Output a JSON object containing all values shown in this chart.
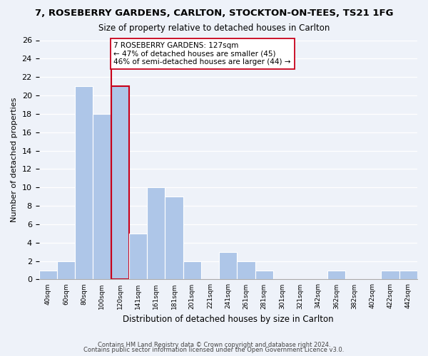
{
  "title": "7, ROSEBERRY GARDENS, CARLTON, STOCKTON-ON-TEES, TS21 1FG",
  "subtitle": "Size of property relative to detached houses in Carlton",
  "xlabel": "Distribution of detached houses by size in Carlton",
  "ylabel": "Number of detached properties",
  "bar_color": "#aec6e8",
  "highlight_color": "#c8001a",
  "annotation_line1": "7 ROSEBERRY GARDENS: 127sqm",
  "annotation_line2": "← 47% of detached houses are smaller (45)",
  "annotation_line3": "46% of semi-detached houses are larger (44) →",
  "bin_labels": [
    "40sqm",
    "60sqm",
    "80sqm",
    "100sqm",
    "120sqm",
    "141sqm",
    "161sqm",
    "181sqm",
    "201sqm",
    "221sqm",
    "241sqm",
    "261sqm",
    "281sqm",
    "301sqm",
    "321sqm",
    "342sqm",
    "362sqm",
    "382sqm",
    "402sqm",
    "422sqm",
    "442sqm"
  ],
  "counts": [
    1,
    2,
    21,
    18,
    21,
    5,
    10,
    9,
    2,
    0,
    3,
    2,
    1,
    0,
    0,
    0,
    1,
    0,
    0,
    1,
    1
  ],
  "ylim": [
    0,
    26
  ],
  "yticks": [
    0,
    2,
    4,
    6,
    8,
    10,
    12,
    14,
    16,
    18,
    20,
    22,
    24,
    26
  ],
  "highlight_bin_index": 4,
  "vline_x_offset": 0.0,
  "footer1": "Contains HM Land Registry data © Crown copyright and database right 2024.",
  "footer2": "Contains public sector information licensed under the Open Government Licence v3.0.",
  "background_color": "#eef2f9"
}
